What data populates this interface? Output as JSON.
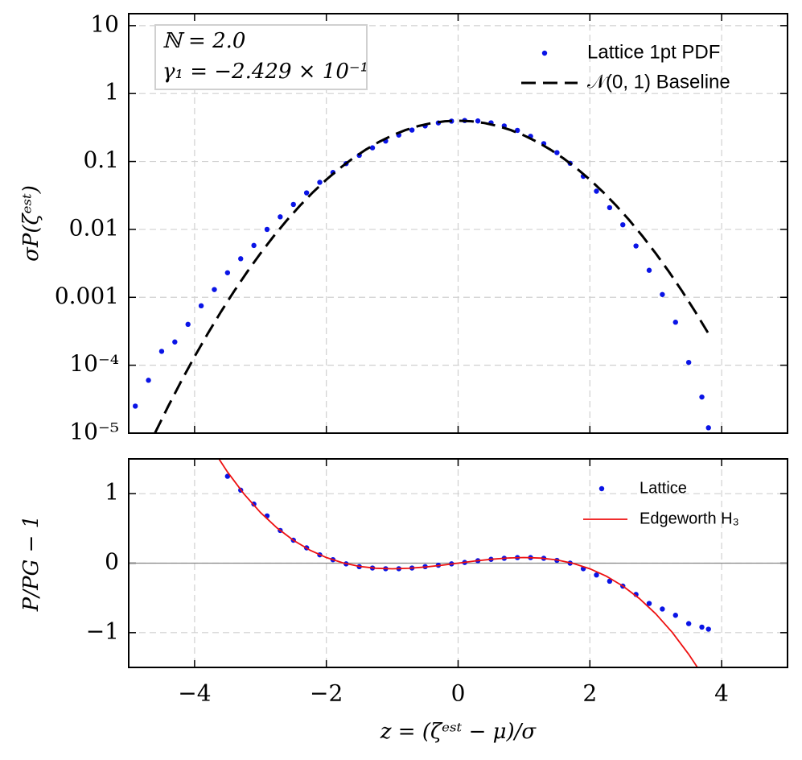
{
  "chart_data": [
    {
      "type": "scatter",
      "ylabel": "σP(ζᵉˢᵗ)",
      "log_y": true,
      "grid": true,
      "legend": "upper right",
      "annotations": [
        "ℕ = 2.0",
        "γ₁ = −2.429 × 10⁻¹"
      ],
      "xlim": [
        -5,
        5
      ],
      "xticks": [
        -4,
        -2,
        0,
        2,
        4
      ],
      "ylim": [
        1e-05,
        15
      ],
      "yticks": [
        10,
        1,
        0.1,
        0.01,
        0.001,
        {
          "value": 0.0001,
          "label": "10⁻⁴"
        },
        {
          "value": 1e-05,
          "label": "10⁻⁵"
        }
      ],
      "series": [
        {
          "name": "Lattice 1pt PDF",
          "color": "#0a14e6",
          "mode": "points",
          "x": [
            -4.9,
            -4.7,
            -4.5,
            -4.3,
            -4.1,
            -3.9,
            -3.7,
            -3.5,
            -3.3,
            -3.1,
            -2.9,
            -2.7,
            -2.5,
            -2.3,
            -2.1,
            -1.9,
            -1.7,
            -1.5,
            -1.3,
            -1.1,
            -0.9,
            -0.7,
            -0.5,
            -0.3,
            -0.1,
            0.1,
            0.3,
            0.5,
            0.7,
            0.9,
            1.1,
            1.3,
            1.5,
            1.7,
            1.9,
            2.1,
            2.3,
            2.5,
            2.7,
            2.9,
            3.1,
            3.3,
            3.5,
            3.7,
            3.8
          ],
          "values": [
            2.5e-05,
            6e-05,
            0.00016,
            0.00022,
            0.0004,
            0.00075,
            0.0013,
            0.0023,
            0.0037,
            0.0058,
            0.01,
            0.0153,
            0.0233,
            0.0345,
            0.0493,
            0.0689,
            0.0931,
            0.123,
            0.159,
            0.2,
            0.245,
            0.29,
            0.334,
            0.37,
            0.393,
            0.401,
            0.395,
            0.371,
            0.334,
            0.287,
            0.235,
            0.183,
            0.135,
            0.094,
            0.0604,
            0.0365,
            0.0209,
            0.0117,
            0.0057,
            0.0025,
            0.0011,
            0.00043,
            0.00011,
            3.4e-05,
            1.2e-05
          ]
        },
        {
          "name": "𝒩(0, 1) Baseline",
          "color": "#000000",
          "mode": "dashed",
          "x": [
            -4.6,
            -4.4,
            -4.2,
            -4,
            -3.8,
            -3.6,
            -3.4,
            -3.2,
            -3,
            -2.8,
            -2.6,
            -2.4,
            -2.2,
            -2,
            -1.8,
            -1.6,
            -1.4,
            -1.2,
            -1,
            -0.8,
            -0.6,
            -0.4,
            -0.2,
            0,
            0.2,
            0.4,
            0.6,
            0.8,
            1,
            1.2,
            1.4,
            1.6,
            1.8,
            2,
            2.2,
            2.4,
            2.6,
            2.8,
            3,
            3.2,
            3.4,
            3.6,
            3.8
          ],
          "values": [
            1.01e-05,
            2.49e-05,
            5.89e-05,
            0.000134,
            0.000292,
            0.000612,
            0.00123,
            0.00238,
            0.00443,
            0.00792,
            0.0136,
            0.0224,
            0.0355,
            0.054,
            0.079,
            0.1109,
            0.1497,
            0.1942,
            0.242,
            0.2897,
            0.3332,
            0.3683,
            0.391,
            0.3989,
            0.391,
            0.3683,
            0.3332,
            0.2897,
            0.242,
            0.1942,
            0.1497,
            0.1109,
            0.079,
            0.054,
            0.0355,
            0.0224,
            0.0136,
            0.00792,
            0.00443,
            0.00238,
            0.00123,
            0.000612,
            0.000292
          ]
        }
      ]
    },
    {
      "type": "scatter",
      "ylabel": "P/PG − 1",
      "xlabel": "z = (ζᵉˢᵗ − μ)/σ",
      "grid": true,
      "legend": "upper right",
      "hline": 0,
      "xlim": [
        -5,
        5
      ],
      "xticks": [
        {
          "value": -4,
          "label": "−4"
        },
        {
          "value": -2,
          "label": "−2"
        },
        0,
        2,
        4
      ],
      "ylim": [
        -1.5,
        1.5
      ],
      "yticks": [
        1,
        0,
        {
          "value": -1,
          "label": "−1"
        }
      ],
      "series": [
        {
          "name": "Lattice",
          "color": "#0a14e6",
          "mode": "points",
          "x": [
            -3.5,
            -3.3,
            -3.1,
            -2.9,
            -2.7,
            -2.5,
            -2.3,
            -2.1,
            -1.9,
            -1.7,
            -1.5,
            -1.3,
            -1.1,
            -0.9,
            -0.7,
            -0.5,
            -0.3,
            -0.1,
            0.1,
            0.3,
            0.5,
            0.7,
            0.9,
            1.1,
            1.3,
            1.5,
            1.7,
            1.9,
            2.1,
            2.3,
            2.5,
            2.7,
            2.9,
            3.1,
            3.3,
            3.5,
            3.7,
            3.8
          ],
          "values": [
            1.25,
            1.05,
            0.85,
            0.68,
            0.47,
            0.33,
            0.22,
            0.12,
            0.05,
            -0.01,
            -0.05,
            -0.07,
            -0.08,
            -0.08,
            -0.07,
            -0.05,
            -0.03,
            -0.01,
            0.01,
            0.035,
            0.055,
            0.07,
            0.08,
            0.08,
            0.07,
            0.04,
            0,
            -0.08,
            -0.17,
            -0.26,
            -0.33,
            -0.45,
            -0.58,
            -0.66,
            -0.75,
            -0.87,
            -0.92,
            -0.95
          ]
        },
        {
          "name": "Edgeworth H₃",
          "color": "#ee1111",
          "mode": "line",
          "x": [
            -3.7,
            -3.5,
            -3.25,
            -3,
            -2.75,
            -2.5,
            -2.25,
            -2,
            -1.75,
            -1.5,
            -1.25,
            -1,
            -0.75,
            -0.5,
            -0.25,
            0,
            0.25,
            0.5,
            0.75,
            1,
            1.25,
            1.5,
            1.75,
            2,
            2.25,
            2.5,
            2.75,
            3,
            3.25,
            3.5,
            3.65
          ],
          "values": [
            1.601,
            1.311,
            0.995,
            0.729,
            0.508,
            0.329,
            0.188,
            0.081,
            0.004,
            -0.046,
            -0.073,
            -0.081,
            -0.074,
            -0.056,
            -0.03,
            0,
            0.03,
            0.056,
            0.074,
            0.081,
            0.073,
            0.046,
            -0.004,
            -0.081,
            -0.188,
            -0.329,
            -0.508,
            -0.729,
            -0.995,
            -1.311,
            -1.525
          ]
        }
      ]
    }
  ]
}
